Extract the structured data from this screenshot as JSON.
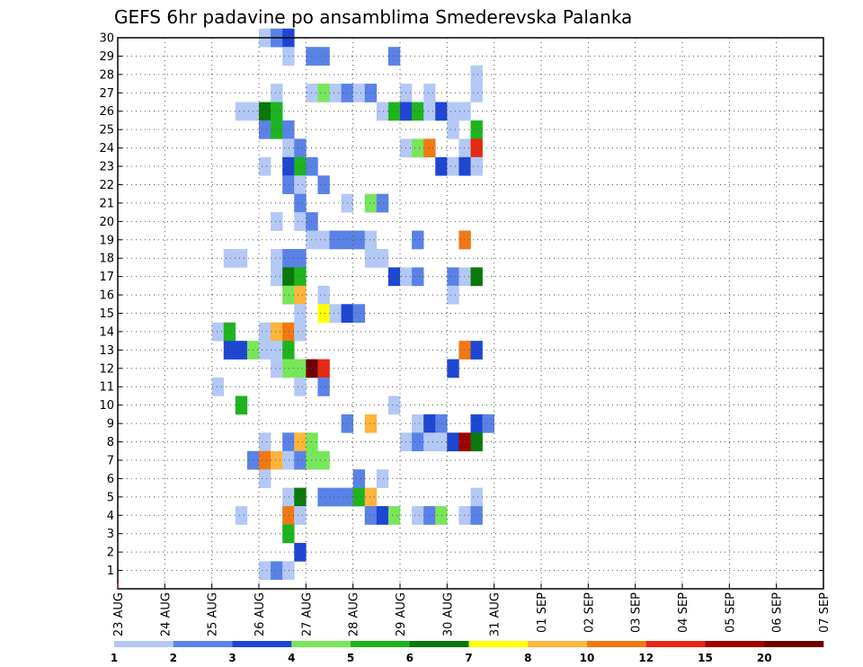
{
  "chart_data": {
    "type": "heatmap",
    "title": "GEFS 6hr padavine po ansamblima Smederevska Palanka",
    "x_start_date": "2023-08-23",
    "x_step_hours": 6,
    "x_ticks": [
      "23 AUG",
      "24 AUG",
      "25 AUG",
      "26 AUG",
      "27 AUG",
      "28 AUG",
      "29 AUG",
      "30 AUG",
      "31 AUG",
      "01 SEP",
      "02 SEP",
      "03 SEP",
      "04 SEP",
      "05 SEP",
      "06 SEP",
      "07 SEP"
    ],
    "y_ticks": [
      "1",
      "2",
      "3",
      "4",
      "5",
      "6",
      "7",
      "8",
      "9",
      "10",
      "11",
      "12",
      "13",
      "14",
      "15",
      "16",
      "17",
      "18",
      "19",
      "20",
      "21",
      "22",
      "23",
      "24",
      "25",
      "26",
      "27",
      "28",
      "29",
      "30"
    ],
    "ylim": [
      0,
      30
    ],
    "grid": true,
    "colorbar": {
      "position": "bottom",
      "labels": [
        "1",
        "2",
        "3",
        "4",
        "5",
        "6",
        "7",
        "8",
        "10",
        "12",
        "15",
        "20"
      ],
      "colors": [
        "#b4c8f5",
        "#5a82e6",
        "#1e46d2",
        "#78e65a",
        "#1eb41e",
        "#0a780a",
        "#ffff00",
        "#ffb43c",
        "#f07814",
        "#e62814",
        "#a00000",
        "#6e0000"
      ]
    },
    "cells": [
      [
        30,
        12,
        1
      ],
      [
        30,
        13,
        2
      ],
      [
        30,
        14,
        3
      ],
      [
        29,
        14,
        1
      ],
      [
        29,
        16,
        2
      ],
      [
        29,
        17,
        2
      ],
      [
        29,
        23,
        2
      ],
      [
        28,
        30,
        1
      ],
      [
        27,
        13,
        1
      ],
      [
        27,
        16,
        1
      ],
      [
        27,
        17,
        4
      ],
      [
        27,
        18,
        1
      ],
      [
        27,
        19,
        2
      ],
      [
        27,
        20,
        1
      ],
      [
        27,
        21,
        2
      ],
      [
        27,
        24,
        1
      ],
      [
        27,
        26,
        1
      ],
      [
        27,
        30,
        1
      ],
      [
        26,
        10,
        1
      ],
      [
        26,
        11,
        1
      ],
      [
        26,
        12,
        6
      ],
      [
        26,
        13,
        5
      ],
      [
        26,
        22,
        1
      ],
      [
        26,
        23,
        5
      ],
      [
        26,
        24,
        3
      ],
      [
        26,
        25,
        5
      ],
      [
        26,
        26,
        1
      ],
      [
        26,
        27,
        3
      ],
      [
        26,
        28,
        1
      ],
      [
        26,
        29,
        1
      ],
      [
        25,
        12,
        2
      ],
      [
        25,
        13,
        5
      ],
      [
        25,
        14,
        2
      ],
      [
        25,
        28,
        1
      ],
      [
        25,
        30,
        5
      ],
      [
        24,
        14,
        1
      ],
      [
        24,
        15,
        2
      ],
      [
        24,
        24,
        1
      ],
      [
        24,
        25,
        4
      ],
      [
        24,
        26,
        9
      ],
      [
        24,
        29,
        1
      ],
      [
        24,
        30,
        10
      ],
      [
        23,
        12,
        1
      ],
      [
        23,
        14,
        3
      ],
      [
        23,
        15,
        5
      ],
      [
        23,
        16,
        2
      ],
      [
        23,
        27,
        3
      ],
      [
        23,
        28,
        1
      ],
      [
        23,
        29,
        3
      ],
      [
        23,
        30,
        1
      ],
      [
        22,
        14,
        2
      ],
      [
        22,
        15,
        1
      ],
      [
        22,
        17,
        2
      ],
      [
        21,
        15,
        2
      ],
      [
        21,
        19,
        1
      ],
      [
        21,
        21,
        4
      ],
      [
        21,
        22,
        2
      ],
      [
        20,
        13,
        1
      ],
      [
        20,
        15,
        1
      ],
      [
        20,
        16,
        2
      ],
      [
        19,
        16,
        1
      ],
      [
        19,
        17,
        1
      ],
      [
        19,
        18,
        2
      ],
      [
        19,
        19,
        2
      ],
      [
        19,
        20,
        2
      ],
      [
        19,
        21,
        1
      ],
      [
        19,
        25,
        2
      ],
      [
        19,
        29,
        9
      ],
      [
        18,
        9,
        1
      ],
      [
        18,
        10,
        1
      ],
      [
        18,
        13,
        1
      ],
      [
        18,
        14,
        2
      ],
      [
        18,
        15,
        2
      ],
      [
        18,
        21,
        1
      ],
      [
        18,
        22,
        1
      ],
      [
        17,
        13,
        1
      ],
      [
        17,
        14,
        6
      ],
      [
        17,
        15,
        5
      ],
      [
        17,
        23,
        3
      ],
      [
        17,
        24,
        1
      ],
      [
        17,
        25,
        2
      ],
      [
        17,
        28,
        2
      ],
      [
        17,
        29,
        1
      ],
      [
        17,
        30,
        6
      ],
      [
        16,
        14,
        4
      ],
      [
        16,
        15,
        8
      ],
      [
        16,
        17,
        1
      ],
      [
        16,
        28,
        1
      ],
      [
        15,
        15,
        1
      ],
      [
        15,
        17,
        7
      ],
      [
        15,
        18,
        1
      ],
      [
        15,
        19,
        3
      ],
      [
        15,
        20,
        2
      ],
      [
        14,
        8,
        1
      ],
      [
        14,
        9,
        5
      ],
      [
        14,
        12,
        1
      ],
      [
        14,
        13,
        8
      ],
      [
        14,
        14,
        9
      ],
      [
        14,
        15,
        1
      ],
      [
        13,
        9,
        3
      ],
      [
        13,
        10,
        3
      ],
      [
        13,
        11,
        4
      ],
      [
        13,
        12,
        1
      ],
      [
        13,
        13,
        1
      ],
      [
        13,
        14,
        5
      ],
      [
        13,
        29,
        9
      ],
      [
        13,
        30,
        3
      ],
      [
        12,
        13,
        1
      ],
      [
        12,
        14,
        4
      ],
      [
        12,
        15,
        4
      ],
      [
        12,
        16,
        12
      ],
      [
        12,
        17,
        10
      ],
      [
        12,
        28,
        3
      ],
      [
        11,
        8,
        1
      ],
      [
        11,
        15,
        1
      ],
      [
        11,
        17,
        2
      ],
      [
        10,
        10,
        5
      ],
      [
        10,
        23,
        1
      ],
      [
        9,
        19,
        2
      ],
      [
        9,
        21,
        8
      ],
      [
        9,
        25,
        1
      ],
      [
        9,
        26,
        3
      ],
      [
        9,
        27,
        2
      ],
      [
        9,
        30,
        3
      ],
      [
        9,
        31,
        2
      ],
      [
        8,
        12,
        1
      ],
      [
        8,
        14,
        2
      ],
      [
        8,
        15,
        8
      ],
      [
        8,
        16,
        4
      ],
      [
        8,
        24,
        1
      ],
      [
        8,
        25,
        2
      ],
      [
        8,
        26,
        1
      ],
      [
        8,
        27,
        1
      ],
      [
        8,
        28,
        3
      ],
      [
        8,
        29,
        11
      ],
      [
        8,
        30,
        6
      ],
      [
        7,
        11,
        2
      ],
      [
        7,
        12,
        9
      ],
      [
        7,
        13,
        8
      ],
      [
        7,
        14,
        1
      ],
      [
        7,
        15,
        2
      ],
      [
        7,
        16,
        4
      ],
      [
        7,
        17,
        4
      ],
      [
        6,
        12,
        1
      ],
      [
        6,
        20,
        2
      ],
      [
        6,
        22,
        1
      ],
      [
        5,
        14,
        1
      ],
      [
        5,
        15,
        6
      ],
      [
        5,
        17,
        2
      ],
      [
        5,
        18,
        2
      ],
      [
        5,
        19,
        2
      ],
      [
        5,
        20,
        5
      ],
      [
        5,
        21,
        8
      ],
      [
        5,
        30,
        1
      ],
      [
        4,
        10,
        1
      ],
      [
        4,
        14,
        9
      ],
      [
        4,
        15,
        1
      ],
      [
        4,
        21,
        2
      ],
      [
        4,
        22,
        3
      ],
      [
        4,
        23,
        4
      ],
      [
        4,
        25,
        1
      ],
      [
        4,
        26,
        2
      ],
      [
        4,
        27,
        4
      ],
      [
        4,
        29,
        1
      ],
      [
        4,
        30,
        2
      ],
      [
        3,
        14,
        5
      ],
      [
        2,
        15,
        3
      ],
      [
        1,
        12,
        1
      ],
      [
        1,
        13,
        2
      ],
      [
        1,
        14,
        1
      ]
    ]
  }
}
